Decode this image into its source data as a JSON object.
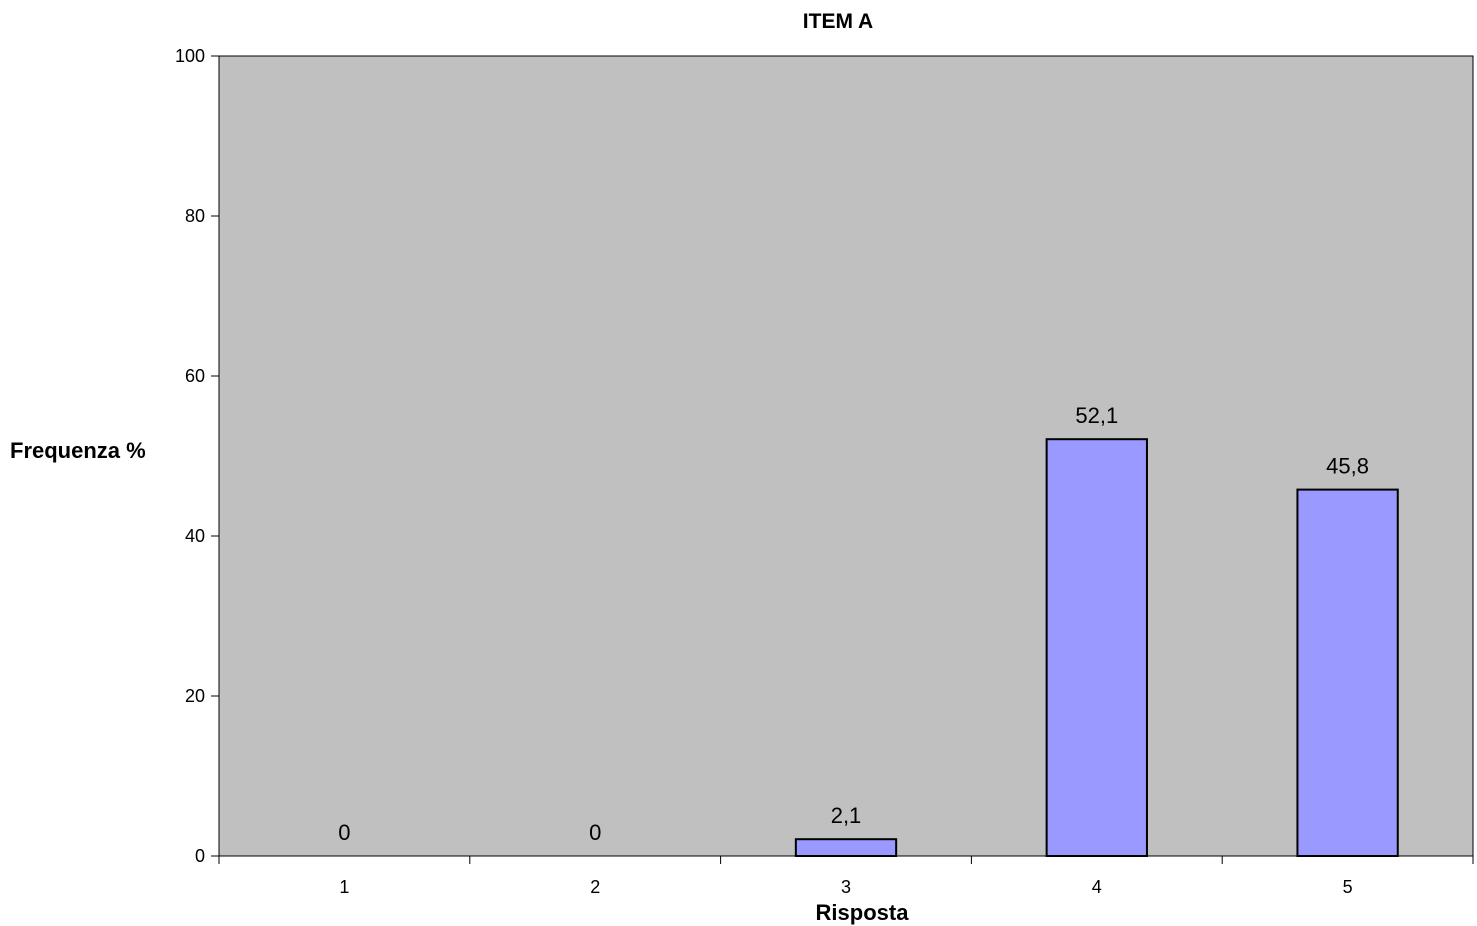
{
  "chart_data": {
    "type": "bar",
    "title": "ITEM A",
    "xlabel": "Risposta",
    "ylabel": "Frequenza %",
    "categories": [
      "1",
      "2",
      "3",
      "4",
      "5"
    ],
    "values": [
      0,
      0,
      2.1,
      52.1,
      45.8
    ],
    "data_labels": [
      "0",
      "0",
      "2,1",
      "52,1",
      "45,8"
    ],
    "ylim": [
      0,
      100
    ],
    "yticks": [
      0,
      20,
      40,
      60,
      80,
      100
    ],
    "ytick_labels": [
      "0",
      "20",
      "40",
      "60",
      "80",
      "100"
    ],
    "grid": false,
    "legend": "none",
    "colors": {
      "plot_background": "#c0c0c0",
      "bar_fill": "#9999ff",
      "bar_stroke": "#000000"
    }
  }
}
